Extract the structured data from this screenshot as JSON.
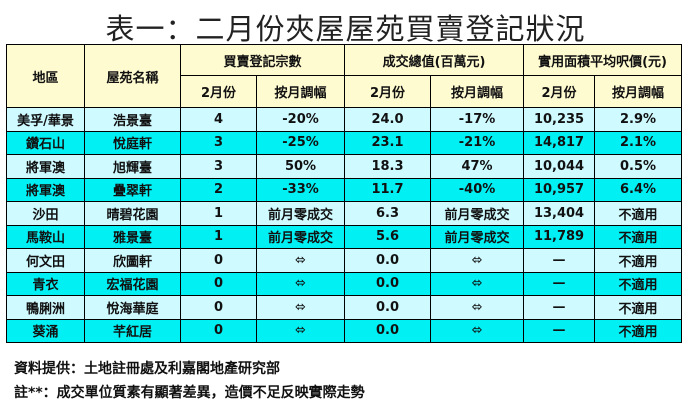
{
  "title": "表一：二月份夾屋屋苑買賣登記狀況",
  "table": {
    "headers": {
      "district": "地區",
      "estate": "屋苑名稱",
      "groups": [
        "買賣登記宗數",
        "成交總值(百萬元)",
        "實用面積平均呎價(元)"
      ],
      "sub": [
        "2月份",
        "按月調幅",
        "2月份",
        "按月調幅",
        "2月份",
        "按月調幅"
      ]
    },
    "rows": [
      {
        "district": "美孚/華景",
        "estate": "浩景臺",
        "count": "4",
        "count_chg": "-20%",
        "value": "24.0",
        "value_chg": "-17%",
        "psf": "10,235",
        "psf_chg": "2.9%"
      },
      {
        "district": "鑽石山",
        "estate": "悅庭軒",
        "count": "3",
        "count_chg": "-25%",
        "value": "23.1",
        "value_chg": "-21%",
        "psf": "14,817",
        "psf_chg": "2.1%"
      },
      {
        "district": "將軍澳",
        "estate": "旭輝臺",
        "count": "3",
        "count_chg": "50%",
        "value": "18.3",
        "value_chg": "47%",
        "psf": "10,044",
        "psf_chg": "0.5%"
      },
      {
        "district": "將軍澳",
        "estate": "疊翠軒",
        "count": "2",
        "count_chg": "-33%",
        "value": "11.7",
        "value_chg": "-40%",
        "psf": "10,957",
        "psf_chg": "6.4%"
      },
      {
        "district": "沙田",
        "estate": "晴碧花園",
        "count": "1",
        "count_chg": "前月零成交",
        "value": "6.3",
        "value_chg": "前月零成交",
        "psf": "13,404",
        "psf_chg": "不適用"
      },
      {
        "district": "馬鞍山",
        "estate": "雅景臺",
        "count": "1",
        "count_chg": "前月零成交",
        "value": "5.6",
        "value_chg": "前月零成交",
        "psf": "11,789",
        "psf_chg": "不適用"
      },
      {
        "district": "何文田",
        "estate": "欣圖軒",
        "count": "0",
        "count_chg": "⬄",
        "value": "0.0",
        "value_chg": "⬄",
        "psf": "—",
        "psf_chg": "不適用"
      },
      {
        "district": "青衣",
        "estate": "宏福花園",
        "count": "0",
        "count_chg": "⬄",
        "value": "0.0",
        "value_chg": "⬄",
        "psf": "—",
        "psf_chg": "不適用"
      },
      {
        "district": "鴨脷洲",
        "estate": "悅海華庭",
        "count": "0",
        "count_chg": "⬄",
        "value": "0.0",
        "value_chg": "⬄",
        "psf": "—",
        "psf_chg": "不適用"
      },
      {
        "district": "葵涌",
        "estate": "芊紅居",
        "count": "0",
        "count_chg": "⬄",
        "value": "0.0",
        "value_chg": "⬄",
        "psf": "—",
        "psf_chg": "不適用"
      }
    ]
  },
  "notes": {
    "source": "資料提供：土地註冊處及利嘉閣地產研究部",
    "footnote": "註**：成交單位質素有顯著差異，造價不足反映實際走勢"
  },
  "colors": {
    "header_bg": "#fffbd0",
    "row_light": "#cffaff",
    "row_dark": "#00f0f4"
  }
}
